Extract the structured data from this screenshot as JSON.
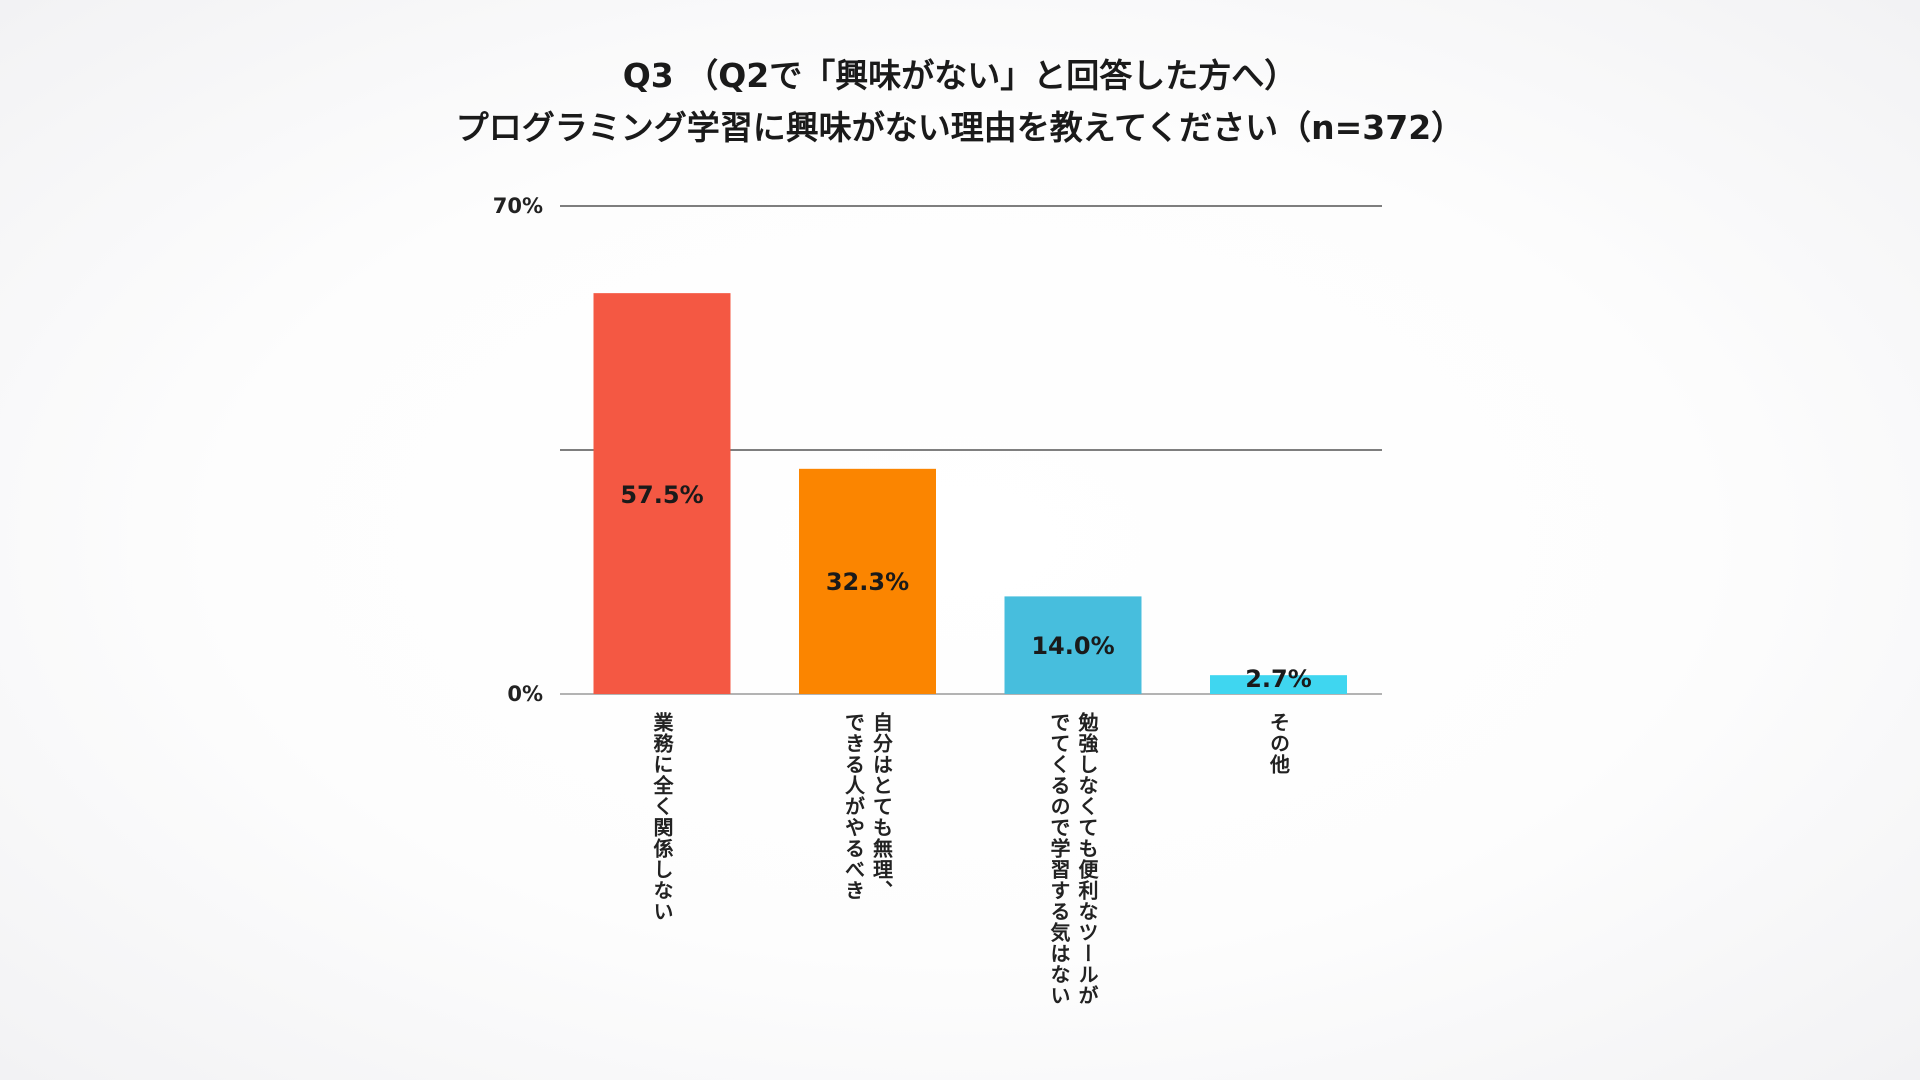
{
  "chart_data": {
    "type": "bar",
    "title": "Q3 （Q2で「興味がない」と回答した方へ）",
    "subtitle": "プログラミング学習に興味がない理由を教えてください（n=372）",
    "categories": [
      [
        "業務に全く関係しない"
      ],
      [
        "自分はとても無理、",
        "できる人がやるべき"
      ],
      [
        "勉強しなくても便利なツールが",
        "でてくるので学習する気はない"
      ],
      [
        "その他"
      ]
    ],
    "values": [
      57.5,
      32.3,
      14.0,
      2.7
    ],
    "value_labels": [
      "57.5%",
      "32.3%",
      "14.0%",
      "2.7%"
    ],
    "colors": [
      "#F45843",
      "#FB8500",
      "#47BEDD",
      "#3FD6F0"
    ],
    "ylim": [
      0,
      70
    ],
    "yticks": [
      {
        "value": 0,
        "label": "0%"
      },
      {
        "value": 35,
        "label": ""
      },
      {
        "value": 70,
        "label": "70%"
      }
    ],
    "grid": true,
    "legend": "none"
  }
}
